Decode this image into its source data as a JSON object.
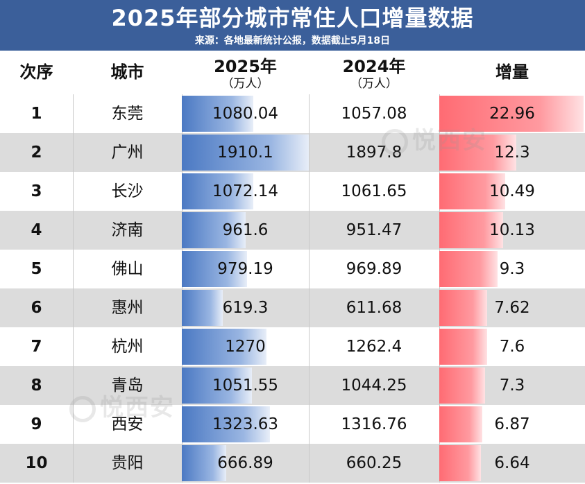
{
  "title": "2025年部分城市常住人口增量数据",
  "subtitle": "来源：各地最新统计公报，数据截止5月18日",
  "watermark": "悦西安",
  "headers": {
    "rank": "次序",
    "city": "城市",
    "y2025": "2025年",
    "y2025_unit": "（万人）",
    "y2024": "2024年",
    "y2024_unit": "（万人）",
    "increase": "增量"
  },
  "colors": {
    "header_bg": "#3b5f9a",
    "bar_2025": "#4b79c3",
    "bar_increase": "#ff6b73",
    "row_alt": "#dcdcdc"
  },
  "chart_data": {
    "type": "table",
    "columns": [
      "次序",
      "城市",
      "2025年（万人）",
      "2024年（万人）",
      "增量"
    ],
    "rows": [
      {
        "rank": "1",
        "city": "东莞",
        "y2025": "1080.04",
        "y2024": "1057.08",
        "inc": "22.96"
      },
      {
        "rank": "2",
        "city": "广州",
        "y2025": "1910.1",
        "y2024": "1897.8",
        "inc": "12.3"
      },
      {
        "rank": "3",
        "city": "长沙",
        "y2025": "1072.14",
        "y2024": "1061.65",
        "inc": "10.49"
      },
      {
        "rank": "4",
        "city": "济南",
        "y2025": "961.6",
        "y2024": "951.47",
        "inc": "10.13"
      },
      {
        "rank": "5",
        "city": "佛山",
        "y2025": "979.19",
        "y2024": "969.89",
        "inc": "9.3"
      },
      {
        "rank": "6",
        "city": "惠州",
        "y2025": "619.3",
        "y2024": "611.68",
        "inc": "7.62"
      },
      {
        "rank": "7",
        "city": "杭州",
        "y2025": "1270",
        "y2024": "1262.4",
        "inc": "7.6"
      },
      {
        "rank": "8",
        "city": "青岛",
        "y2025": "1051.55",
        "y2024": "1044.25",
        "inc": "7.3"
      },
      {
        "rank": "9",
        "city": "西安",
        "y2025": "1323.63",
        "y2024": "1316.76",
        "inc": "6.87"
      },
      {
        "rank": "10",
        "city": "贵阳",
        "y2025": "666.89",
        "y2024": "660.25",
        "inc": "6.64"
      }
    ]
  }
}
